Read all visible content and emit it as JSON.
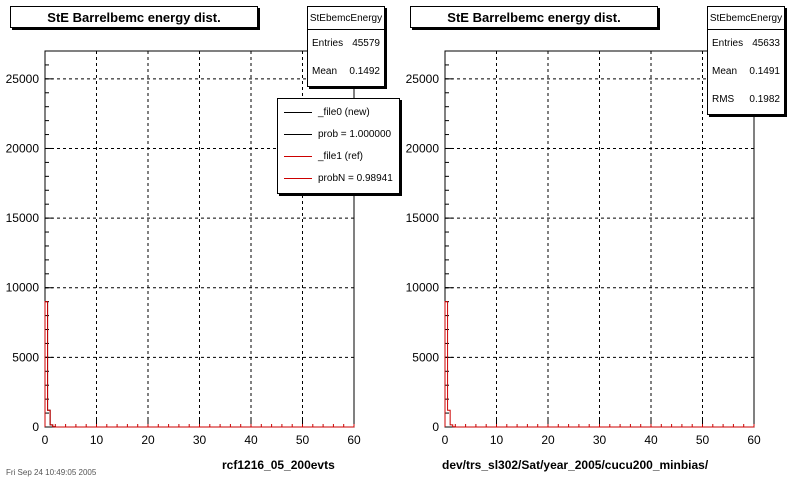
{
  "colors": {
    "new": "#000000",
    "ref": "#cc0000",
    "axis": "#000000"
  },
  "chart_data": [
    {
      "type": "bar",
      "title": "StE Barrelbemc energy dist.",
      "xlabel": "rcf1216_05_200evts",
      "ylabel": "",
      "xlim": [
        0,
        60
      ],
      "ylim": [
        0,
        27000
      ],
      "grid": true,
      "x_ticks": [
        "0",
        "10",
        "20",
        "30",
        "40",
        "50",
        "60"
      ],
      "y_ticks": [
        "0",
        "5000",
        "10000",
        "15000",
        "20000",
        "25000"
      ],
      "stats": {
        "name": "StEbemcEnergy",
        "entries": "45579",
        "mean": "0.1492"
      },
      "legend": [
        {
          "label": "_file0 (new)",
          "color": "#000000"
        },
        {
          "label": "prob = 1.000000",
          "color": "#000000"
        },
        {
          "label": "_file1 (ref)",
          "color": "#cc0000"
        },
        {
          "label": "probN = 0.98941",
          "color": "#cc0000"
        }
      ],
      "series": [
        {
          "name": "_file0 (new)",
          "x": [
            0.25,
            0.75,
            1.25,
            1.75,
            2.25
          ],
          "values": [
            9000,
            1200,
            150,
            20,
            0
          ]
        },
        {
          "name": "_file1 (ref)",
          "x": [
            0.25,
            0.75,
            1.25,
            1.75,
            2.25
          ],
          "values": [
            9000,
            1200,
            150,
            20,
            0
          ]
        }
      ],
      "footnote": "Fri Sep 24 10:49:05 2005"
    },
    {
      "type": "bar",
      "title": "StE Barrelbemc energy dist.",
      "xlabel": "dev/trs_sl302/Sat/year_2005/cucu200_minbias/",
      "ylabel": "",
      "xlim": [
        0,
        60
      ],
      "ylim": [
        0,
        27000
      ],
      "grid": true,
      "x_ticks": [
        "0",
        "10",
        "20",
        "30",
        "40",
        "50",
        "60"
      ],
      "y_ticks": [
        "0",
        "5000",
        "10000",
        "15000",
        "20000",
        "25000"
      ],
      "stats": {
        "name": "StEbemcEnergy",
        "entries": "45633",
        "mean": "0.1491",
        "rms": "0.1982"
      },
      "series": [
        {
          "name": "",
          "x": [
            0.25,
            0.75,
            1.25,
            1.75,
            2.25
          ],
          "values": [
            9000,
            1200,
            150,
            20,
            0
          ]
        }
      ]
    }
  ]
}
